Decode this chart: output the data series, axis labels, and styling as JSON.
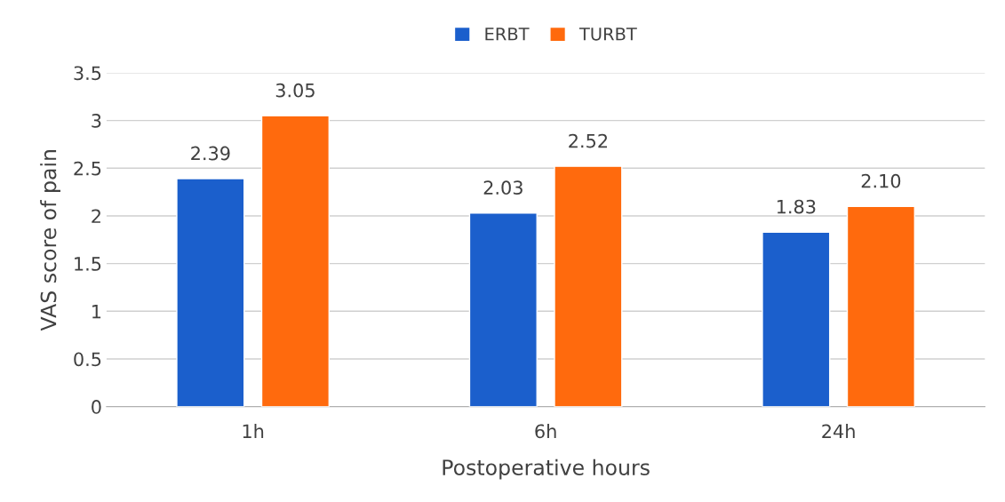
{
  "chart_data": {
    "type": "bar",
    "xlabel": "Postoperative hours",
    "ylabel": "VAS score of pain",
    "categories": [
      "1h",
      "6h",
      "24h"
    ],
    "series": [
      {
        "name": "ERBT",
        "color": "#1b5fcc",
        "values": [
          2.39,
          2.03,
          1.83
        ],
        "value_labels": [
          "2.39",
          "2.03",
          "1.83"
        ]
      },
      {
        "name": "TURBT",
        "color": "#ff6a0d",
        "values": [
          3.05,
          2.52,
          2.1
        ],
        "value_labels": [
          "3.05",
          "2.52",
          "2.10"
        ]
      }
    ],
    "ylim": [
      0,
      3.5
    ],
    "yticks": [
      0,
      0.5,
      1,
      1.5,
      2,
      2.5,
      3,
      3.5
    ],
    "grid": "y",
    "legend": "top"
  }
}
